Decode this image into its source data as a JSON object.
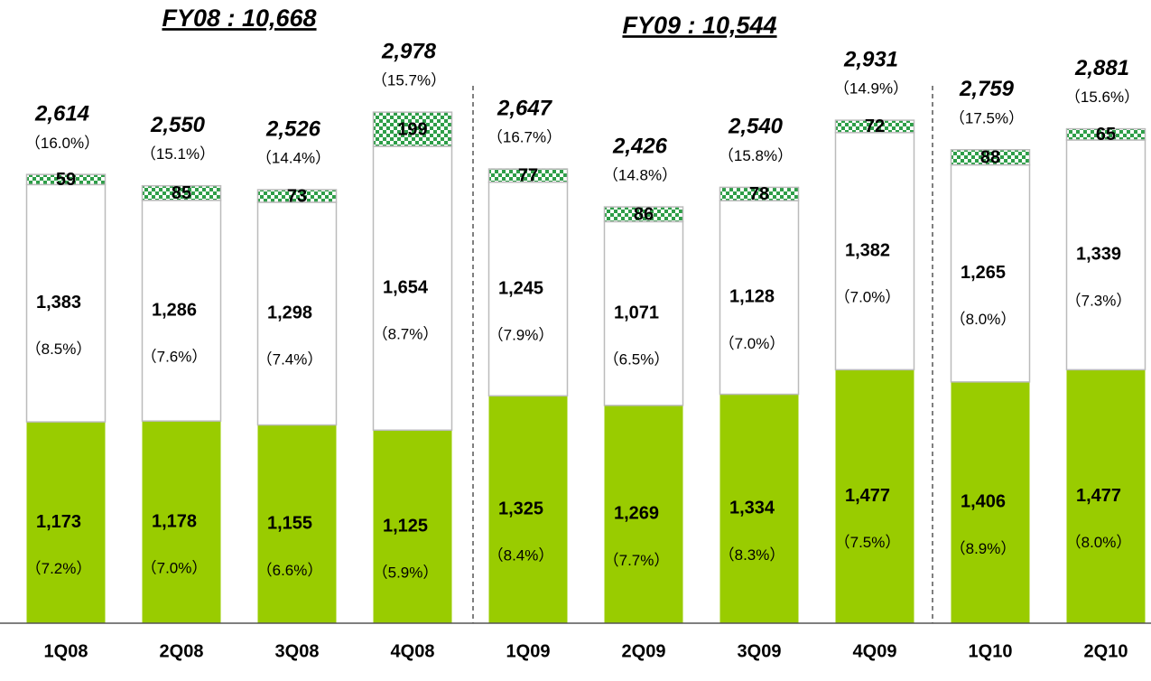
{
  "chart_data": {
    "type": "stacked_bar",
    "annotations": [
      "FY08 : 10,668",
      "FY09 : 10,544"
    ],
    "categories": [
      "1Q08",
      "2Q08",
      "3Q08",
      "4Q08",
      "1Q09",
      "2Q09",
      "3Q09",
      "4Q09",
      "1Q10",
      "2Q10"
    ],
    "series": [
      {
        "color": "#99cc00",
        "pattern": "solid",
        "values": [
          1173,
          1178,
          1155,
          1125,
          1325,
          1269,
          1334,
          1477,
          1406,
          1477
        ],
        "value_labels": [
          "1,173",
          "1,178",
          "1,155",
          "1,125",
          "1,325",
          "1,269",
          "1,334",
          "1,477",
          "1,406",
          "1,477"
        ],
        "percent_labels": [
          "（7.2%）",
          "（7.0%）",
          "（6.6%）",
          "（5.9%）",
          "（8.4%）",
          "（7.7%）",
          "（8.3%）",
          "（7.5%）",
          "（8.9%）",
          "（8.0%）"
        ]
      },
      {
        "color": "#ffffff",
        "pattern": "solid",
        "values": [
          1383,
          1286,
          1298,
          1654,
          1245,
          1071,
          1128,
          1382,
          1265,
          1339
        ],
        "value_labels": [
          "1,383",
          "1,286",
          "1,298",
          "1,654",
          "1,245",
          "1,071",
          "1,128",
          "1,382",
          "1,265",
          "1,339"
        ],
        "percent_labels": [
          "（8.5%）",
          "（7.6%）",
          "（7.4%）",
          "（8.7%）",
          "（7.9%）",
          "（6.5%）",
          "（7.0%）",
          "（7.0%）",
          "（8.0%）",
          "（7.3%）"
        ]
      },
      {
        "color": "#2e9e48",
        "pattern": "checker",
        "values": [
          59,
          85,
          73,
          199,
          77,
          86,
          78,
          72,
          88,
          65
        ]
      }
    ],
    "totals": {
      "values": [
        2614,
        2550,
        2526,
        2978,
        2647,
        2426,
        2540,
        2931,
        2759,
        2881
      ],
      "value_labels": [
        "2,614",
        "2,550",
        "2,526",
        "2,978",
        "2,647",
        "2,426",
        "2,540",
        "2,931",
        "2,759",
        "2,881"
      ],
      "percent_labels": [
        "（16.0%）",
        "（15.1%）",
        "（14.4%）",
        "（15.7%）",
        "（16.7%）",
        "（14.8%）",
        "（15.8%）",
        "（14.9%）",
        "（17.5%）",
        "（15.6%）"
      ]
    }
  }
}
